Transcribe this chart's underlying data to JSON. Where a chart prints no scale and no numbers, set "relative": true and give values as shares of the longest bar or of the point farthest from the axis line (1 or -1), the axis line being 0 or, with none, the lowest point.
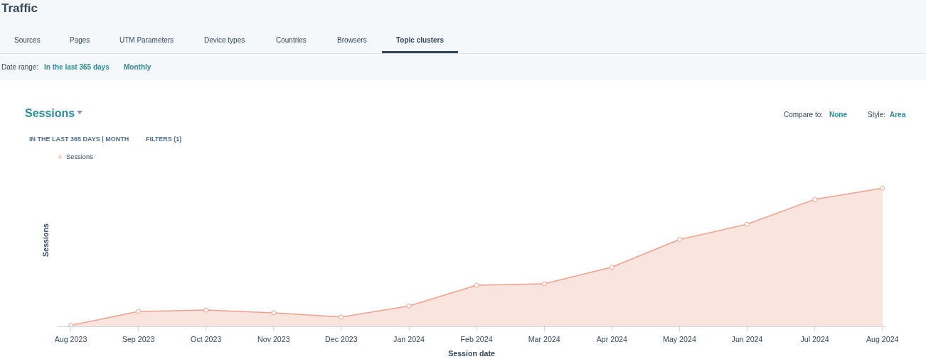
{
  "chart_data": {
    "type": "area",
    "title": "Sessions",
    "xlabel": "Session date",
    "ylabel": "Sessions",
    "annotations": [
      "Traffic",
      "Sources",
      "Pages",
      "UTM Parameters",
      "Device types",
      "Countries",
      "Browsers",
      "Topic clusters",
      "Date range:",
      "In the last 365 days",
      "Monthly",
      "IN THE LAST 365 DAYS | MONTH",
      "FILTERS (1)",
      "Compare to:",
      "None",
      "Style:",
      "Area"
    ],
    "categories": [
      "Aug 2023",
      "Sep 2023",
      "Oct 2023",
      "Nov 2023",
      "Dec 2023",
      "Jan 2024",
      "Feb 2024",
      "Mar 2024",
      "Apr 2024",
      "May 2024",
      "Jun 2024",
      "Jul 2024",
      "Aug 2024"
    ],
    "relative": true,
    "series": [
      {
        "name": "Sessions",
        "color": "#f0a08c",
        "values": [
          0.01,
          0.11,
          0.12,
          0.1,
          0.07,
          0.15,
          0.3,
          0.31,
          0.43,
          0.63,
          0.74,
          0.92,
          1.0
        ]
      }
    ],
    "marker": "circle",
    "legend": "top left"
  }
}
